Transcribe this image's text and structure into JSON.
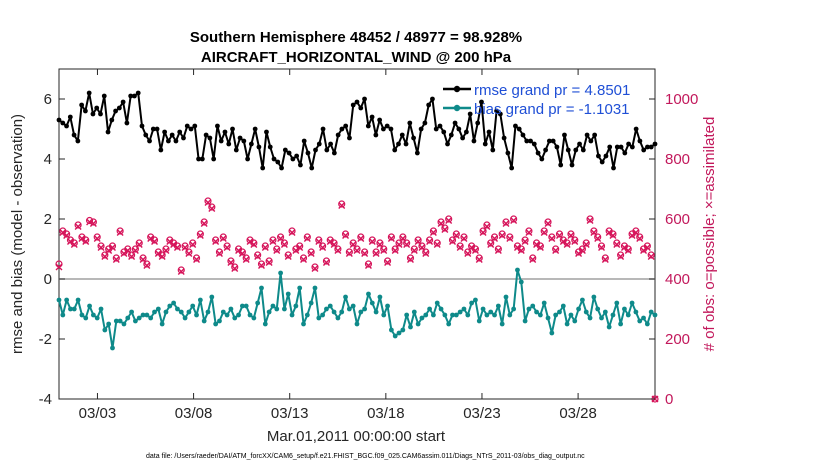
{
  "chart_data": {
    "type": "line",
    "title": "Southern Hemisphere 48452 / 48977 = 98.928%",
    "subtitle": "AIRCRAFT_HORIZONTAL_WIND @ 200 hPa",
    "xlabel": "Mar.01,2011 00:00:00 start",
    "ylabel_left": "rmse and bias (model - observation)",
    "ylabel_right": "# of obs: o=possible; ×=assimilated",
    "x_tick_labels": [
      "03/03",
      "03/08",
      "03/13",
      "03/18",
      "03/23",
      "03/28"
    ],
    "x_tick_days": [
      3,
      8,
      13,
      18,
      23,
      28
    ],
    "xlim_days": [
      1,
      32
    ],
    "ylim_left": [
      -4,
      7
    ],
    "y_ticks_left": [
      "-4",
      "-2",
      "0",
      "2",
      "4",
      "6"
    ],
    "ylim_right": [
      0,
      1100
    ],
    "y_ticks_right": [
      "0",
      "200",
      "400",
      "600",
      "800",
      "1000"
    ],
    "grid": false,
    "zero_line": true,
    "legend_position": "top-right",
    "colors": {
      "rmse": "#000000",
      "bias": "#0e8a8a",
      "obs": "#d6145a",
      "zero": "#a0a0a0",
      "legend_text": "#1f4fd6",
      "right_axis": "#c2185b"
    },
    "series": [
      {
        "name": "rmse grand pr = 4.8501",
        "axis": "left",
        "values": [
          5.3,
          5.2,
          5.1,
          5.4,
          4.8,
          4.6,
          5.8,
          5.6,
          6.2,
          5.5,
          5.7,
          5.5,
          6.1,
          4.9,
          5.3,
          5.6,
          5.7,
          5.9,
          5.2,
          6.1,
          6.1,
          6.2,
          5.1,
          4.8,
          4.6,
          5.0,
          5.0,
          4.3,
          4.9,
          4.6,
          4.8,
          4.6,
          4.9,
          4.7,
          5.1,
          5.0,
          5.1,
          4.0,
          4.0,
          4.8,
          4.7,
          4.0,
          5.1,
          4.6,
          4.9,
          4.5,
          5.0,
          4.3,
          4.7,
          4.6,
          4.0,
          4.5,
          5.0,
          4.4,
          3.7,
          4.9,
          4.4,
          4.0,
          3.9,
          3.7,
          4.3,
          4.2,
          4.0,
          4.1,
          3.8,
          4.6,
          4.2,
          3.7,
          4.3,
          4.5,
          5.0,
          4.3,
          4.5,
          4.2,
          4.8,
          5.0,
          5.1,
          4.7,
          5.8,
          5.9,
          5.7,
          6.0,
          5.1,
          5.4,
          4.8,
          5.3,
          5.0,
          5.1,
          5.0,
          4.3,
          4.5,
          4.8,
          4.5,
          5.2,
          4.7,
          4.2,
          5.0,
          5.2,
          5.8,
          6.0,
          5.0,
          5.1,
          4.9,
          4.5,
          4.8,
          5.2,
          5.0,
          4.7,
          4.9,
          5.5,
          4.6,
          5.2,
          5.9,
          4.5,
          4.9,
          4.3,
          5.6,
          5.5,
          4.7,
          4.2,
          3.7,
          5.1,
          5.0,
          4.8,
          4.6,
          4.6,
          4.5,
          4.2,
          4.0,
          4.3,
          4.6,
          4.6,
          4.4,
          3.8,
          4.8,
          4.3,
          3.8,
          4.3,
          4.5,
          4.3,
          4.8,
          4.6,
          4.8,
          4.1,
          3.9,
          4.1,
          4.4,
          3.7,
          4.4,
          4.4,
          4.2,
          4.5,
          4.4,
          5.0,
          4.6,
          4.3,
          4.4,
          4.4,
          4.5
        ]
      },
      {
        "name": "bias grand pr = -1.1031",
        "axis": "left",
        "values": [
          -0.7,
          -1.2,
          -0.7,
          -1.0,
          -1.0,
          -0.7,
          -1.2,
          -1.3,
          -0.9,
          -1.2,
          -1.3,
          -1.0,
          -1.7,
          -1.5,
          -2.3,
          -1.4,
          -1.4,
          -1.5,
          -1.3,
          -1.1,
          -1.4,
          -1.3,
          -1.2,
          -1.2,
          -1.3,
          -1.1,
          -1.0,
          -1.5,
          -1.1,
          -0.9,
          -0.8,
          -1.0,
          -1.1,
          -1.3,
          -1.1,
          -0.9,
          -1.2,
          -0.7,
          -1.4,
          -1.1,
          -0.6,
          -1.5,
          -1.4,
          -1.1,
          -1.2,
          -1.0,
          -1.3,
          -1.2,
          -0.9,
          -0.9,
          -1.2,
          -1.3,
          -0.8,
          -0.3,
          -1.5,
          -1.1,
          -0.9,
          -1.0,
          0.2,
          -1.0,
          -0.5,
          -1.2,
          -0.9,
          -0.3,
          -1.5,
          -1.2,
          -0.8,
          -0.3,
          -1.3,
          -1.2,
          -1.0,
          -0.9,
          -1.1,
          -1.3,
          -1.1,
          -0.6,
          -1.0,
          -0.9,
          -1.5,
          -1.1,
          -1.0,
          -0.5,
          -0.8,
          -1.1,
          -0.6,
          -1.2,
          -0.9,
          -1.7,
          -1.9,
          -1.8,
          -1.7,
          -1.2,
          -1.6,
          -1.1,
          -1.5,
          -1.3,
          -1.2,
          -1.0,
          -1.2,
          -0.8,
          -1.0,
          -1.2,
          -1.5,
          -1.2,
          -1.2,
          -1.1,
          -1.0,
          -1.2,
          -0.8,
          -0.7,
          -1.4,
          -1.0,
          -1.2,
          -1.1,
          -1.2,
          -0.9,
          -1.5,
          -0.6,
          -1.2,
          -1.0,
          0.3,
          -0.1,
          -1.4,
          -1.0,
          -0.9,
          -1.1,
          -1.2,
          -0.8,
          -1.3,
          -1.8,
          -1.2,
          -1.1,
          -0.9,
          -1.5,
          -1.2,
          -1.4,
          -1.0,
          -0.7,
          -1.1,
          -1.3,
          -0.6,
          -1.0,
          -1.3,
          -1.1,
          -1.6,
          -1.2,
          -0.8,
          -1.5,
          -1.0,
          -1.2,
          -0.8,
          -1.1,
          -1.4,
          -1.3,
          -1.5,
          -1.1,
          -1.2
        ]
      },
      {
        "name": "obs possible",
        "axis": "right",
        "values": [
          450,
          560,
          550,
          530,
          520,
          580,
          540,
          530,
          595,
          590,
          540,
          510,
          480,
          500,
          510,
          470,
          560,
          490,
          500,
          480,
          500,
          520,
          470,
          450,
          540,
          530,
          490,
          480,
          500,
          530,
          520,
          510,
          430,
          510,
          490,
          520,
          470,
          550,
          590,
          660,
          640,
          530,
          490,
          540,
          510,
          460,
          440,
          500,
          490,
          470,
          530,
          520,
          480,
          450,
          510,
          460,
          530,
          500,
          540,
          520,
          480,
          560,
          500,
          510,
          470,
          540,
          490,
          440,
          530,
          510,
          460,
          530,
          520,
          500,
          650,
          550,
          490,
          520,
          500,
          540,
          490,
          450,
          530,
          490,
          520,
          500,
          460,
          540,
          500,
          520,
          540,
          520,
          470,
          500,
          530,
          510,
          490,
          530,
          560,
          520,
          590,
          570,
          600,
          530,
          550,
          510,
          540,
          490,
          510,
          500,
          470,
          560,
          580,
          520,
          540,
          500,
          550,
          590,
          540,
          600,
          510,
          500,
          530,
          560,
          470,
          520,
          510,
          560,
          590,
          540,
          500,
          550,
          530,
          520,
          550,
          530,
          490,
          500,
          520,
          600,
          560,
          540,
          510,
          470,
          560,
          550,
          520,
          480,
          510,
          500,
          550,
          560,
          540,
          500,
          510,
          480,
          0
        ]
      },
      {
        "name": "obs assimilated",
        "axis": "right",
        "values": [
          440,
          555,
          545,
          525,
          515,
          575,
          535,
          525,
          590,
          585,
          535,
          505,
          475,
          495,
          505,
          465,
          555,
          485,
          495,
          475,
          495,
          515,
          465,
          445,
          535,
          525,
          485,
          475,
          495,
          525,
          515,
          505,
          425,
          505,
          485,
          515,
          465,
          545,
          585,
          655,
          635,
          525,
          485,
          535,
          505,
          455,
          435,
          495,
          485,
          465,
          525,
          515,
          475,
          445,
          505,
          455,
          525,
          495,
          535,
          515,
          475,
          555,
          495,
          505,
          465,
          535,
          485,
          435,
          525,
          505,
          455,
          525,
          515,
          495,
          645,
          545,
          485,
          515,
          495,
          535,
          485,
          445,
          525,
          485,
          515,
          495,
          455,
          535,
          495,
          515,
          535,
          515,
          465,
          495,
          525,
          505,
          485,
          525,
          555,
          515,
          585,
          565,
          595,
          525,
          545,
          505,
          535,
          485,
          505,
          495,
          465,
          555,
          575,
          515,
          535,
          495,
          545,
          585,
          535,
          595,
          505,
          495,
          525,
          555,
          465,
          515,
          505,
          555,
          585,
          535,
          495,
          545,
          525,
          515,
          545,
          525,
          485,
          495,
          515,
          595,
          555,
          535,
          505,
          465,
          555,
          545,
          515,
          475,
          505,
          495,
          545,
          555,
          535,
          495,
          505,
          475,
          0
        ]
      }
    ],
    "footnote": "data file: /Users/raeder/DAI/ATM_forcXX/CAM6_setup/f.e21.FHIST_BGC.f09_025.CAM6assim.011/Diags_NTrS_2011-03/obs_diag_output.nc"
  }
}
